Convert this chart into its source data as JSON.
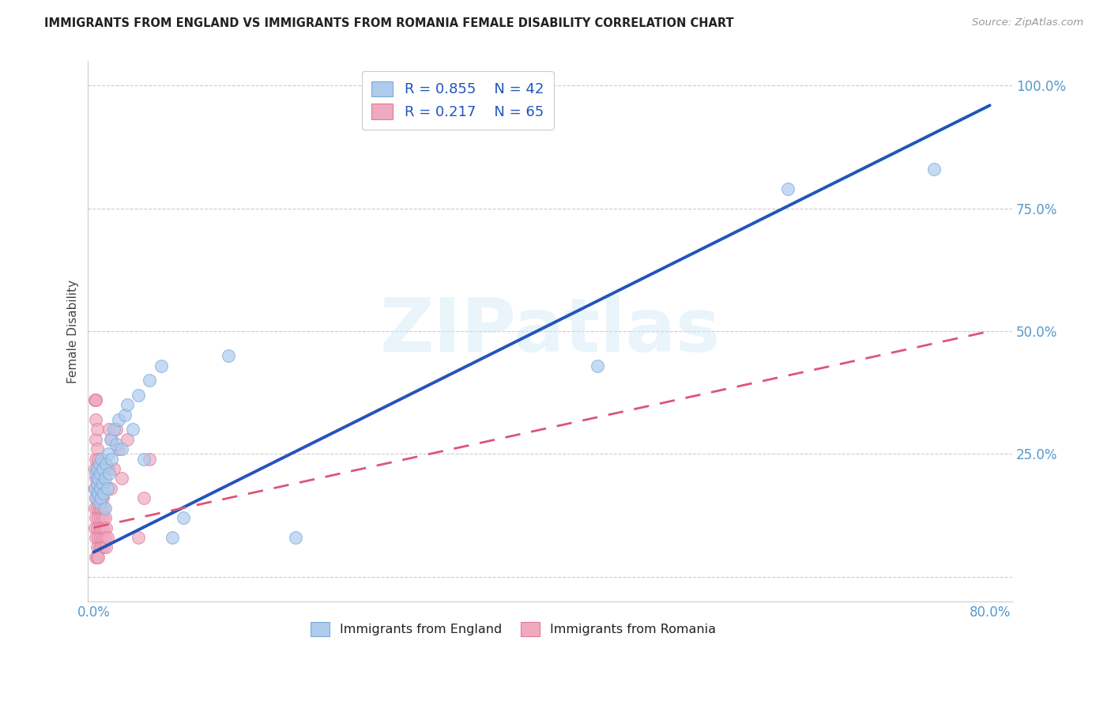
{
  "title": "IMMIGRANTS FROM ENGLAND VS IMMIGRANTS FROM ROMANIA FEMALE DISABILITY CORRELATION CHART",
  "source": "Source: ZipAtlas.com",
  "ylabel": "Female Disability",
  "xlim": [
    -0.005,
    0.82
  ],
  "ylim": [
    -0.05,
    1.05
  ],
  "xtick_vals": [
    0.0,
    0.2,
    0.4,
    0.6,
    0.8
  ],
  "xticklabels": [
    "0.0%",
    "",
    "",
    "",
    "80.0%"
  ],
  "ytick_vals": [
    0.0,
    0.25,
    0.5,
    0.75,
    1.0
  ],
  "yticklabels": [
    "",
    "25.0%",
    "50.0%",
    "75.0%",
    "100.0%"
  ],
  "england_color": "#aecbee",
  "england_edge": "#7aaad8",
  "romania_color": "#f0aabf",
  "romania_edge": "#e07898",
  "england_line_color": "#2255bb",
  "romania_line_color": "#dd5577",
  "watermark": "ZIPatlas",
  "legend_R_england": "0.855",
  "legend_N_england": "42",
  "legend_R_romania": "0.217",
  "legend_N_romania": "65",
  "eng_line_x0": 0.0,
  "eng_line_y0": 0.05,
  "eng_line_x1": 0.8,
  "eng_line_y1": 0.96,
  "rom_line_x0": 0.0,
  "rom_line_y0": 0.1,
  "rom_line_x1": 0.8,
  "rom_line_y1": 0.5,
  "england_scatter": [
    [
      0.001,
      0.18
    ],
    [
      0.002,
      0.21
    ],
    [
      0.002,
      0.16
    ],
    [
      0.003,
      0.19
    ],
    [
      0.003,
      0.22
    ],
    [
      0.004,
      0.17
    ],
    [
      0.004,
      0.2
    ],
    [
      0.005,
      0.15
    ],
    [
      0.005,
      0.23
    ],
    [
      0.006,
      0.18
    ],
    [
      0.006,
      0.21
    ],
    [
      0.007,
      0.16
    ],
    [
      0.007,
      0.24
    ],
    [
      0.008,
      0.19
    ],
    [
      0.008,
      0.22
    ],
    [
      0.009,
      0.17
    ],
    [
      0.01,
      0.2
    ],
    [
      0.01,
      0.14
    ],
    [
      0.011,
      0.23
    ],
    [
      0.012,
      0.18
    ],
    [
      0.013,
      0.25
    ],
    [
      0.014,
      0.21
    ],
    [
      0.015,
      0.28
    ],
    [
      0.016,
      0.24
    ],
    [
      0.018,
      0.3
    ],
    [
      0.02,
      0.27
    ],
    [
      0.022,
      0.32
    ],
    [
      0.025,
      0.26
    ],
    [
      0.028,
      0.33
    ],
    [
      0.03,
      0.35
    ],
    [
      0.035,
      0.3
    ],
    [
      0.04,
      0.37
    ],
    [
      0.045,
      0.24
    ],
    [
      0.05,
      0.4
    ],
    [
      0.06,
      0.43
    ],
    [
      0.07,
      0.08
    ],
    [
      0.08,
      0.12
    ],
    [
      0.12,
      0.45
    ],
    [
      0.18,
      0.08
    ],
    [
      0.45,
      0.43
    ],
    [
      0.62,
      0.79
    ],
    [
      0.75,
      0.83
    ]
  ],
  "romania_scatter": [
    [
      0.001,
      0.1
    ],
    [
      0.001,
      0.14
    ],
    [
      0.001,
      0.18
    ],
    [
      0.001,
      0.22
    ],
    [
      0.002,
      0.08
    ],
    [
      0.002,
      0.12
    ],
    [
      0.002,
      0.16
    ],
    [
      0.002,
      0.2
    ],
    [
      0.002,
      0.24
    ],
    [
      0.002,
      0.28
    ],
    [
      0.002,
      0.32
    ],
    [
      0.002,
      0.36
    ],
    [
      0.003,
      0.06
    ],
    [
      0.003,
      0.1
    ],
    [
      0.003,
      0.14
    ],
    [
      0.003,
      0.18
    ],
    [
      0.003,
      0.22
    ],
    [
      0.003,
      0.26
    ],
    [
      0.003,
      0.3
    ],
    [
      0.004,
      0.08
    ],
    [
      0.004,
      0.12
    ],
    [
      0.004,
      0.16
    ],
    [
      0.004,
      0.2
    ],
    [
      0.004,
      0.24
    ],
    [
      0.005,
      0.06
    ],
    [
      0.005,
      0.1
    ],
    [
      0.005,
      0.14
    ],
    [
      0.005,
      0.18
    ],
    [
      0.005,
      0.22
    ],
    [
      0.006,
      0.08
    ],
    [
      0.006,
      0.12
    ],
    [
      0.006,
      0.16
    ],
    [
      0.006,
      0.2
    ],
    [
      0.007,
      0.06
    ],
    [
      0.007,
      0.1
    ],
    [
      0.007,
      0.14
    ],
    [
      0.007,
      0.18
    ],
    [
      0.008,
      0.08
    ],
    [
      0.008,
      0.12
    ],
    [
      0.008,
      0.16
    ],
    [
      0.009,
      0.06
    ],
    [
      0.009,
      0.1
    ],
    [
      0.009,
      0.14
    ],
    [
      0.01,
      0.08
    ],
    [
      0.01,
      0.12
    ],
    [
      0.011,
      0.06
    ],
    [
      0.011,
      0.1
    ],
    [
      0.012,
      0.08
    ],
    [
      0.013,
      0.22
    ],
    [
      0.014,
      0.3
    ],
    [
      0.015,
      0.18
    ],
    [
      0.016,
      0.28
    ],
    [
      0.018,
      0.22
    ],
    [
      0.02,
      0.3
    ],
    [
      0.022,
      0.26
    ],
    [
      0.025,
      0.2
    ],
    [
      0.03,
      0.28
    ],
    [
      0.04,
      0.08
    ],
    [
      0.045,
      0.16
    ],
    [
      0.05,
      0.24
    ],
    [
      0.002,
      0.04
    ],
    [
      0.003,
      0.04
    ],
    [
      0.004,
      0.04
    ],
    [
      0.001,
      0.36
    ],
    [
      0.002,
      0.36
    ]
  ]
}
